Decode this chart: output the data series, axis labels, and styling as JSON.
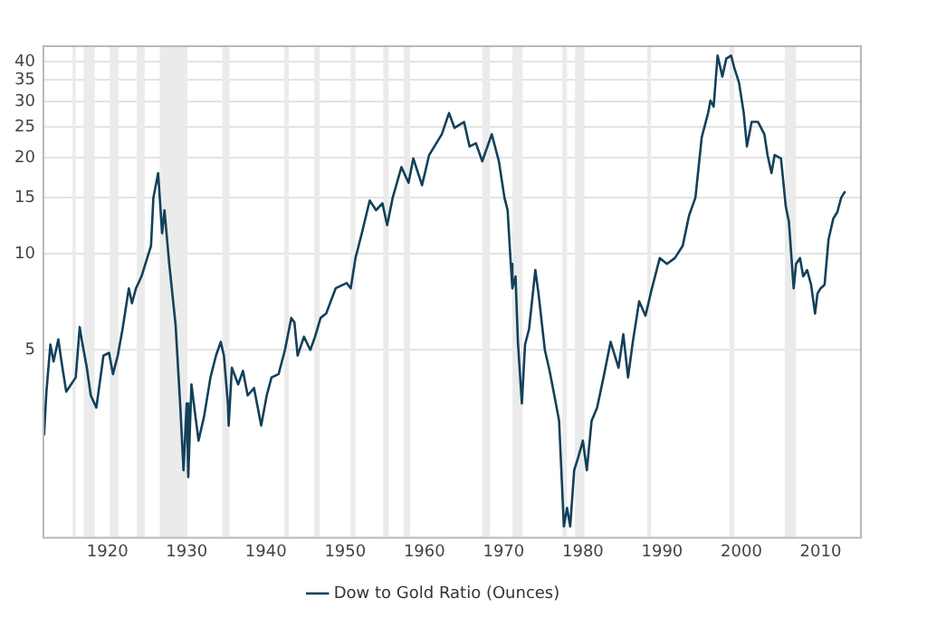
{
  "chart_data": {
    "type": "line",
    "log": true,
    "grid": "y",
    "legend": "bottom",
    "marker": "none",
    "line_style": "solid",
    "xlim": [
      1911.8,
      2015.2
    ],
    "xticks": [
      1920,
      1930,
      1940,
      1950,
      1960,
      1970,
      1980,
      1990,
      2000,
      2010
    ],
    "ylim": [
      1.3,
      45
    ],
    "yticks": [
      5,
      10,
      15,
      20,
      25,
      30,
      35,
      40
    ],
    "bands": [
      {
        "axis": "x",
        "from": 1915.6,
        "to": 1916.0,
        "color": "#ebebeb"
      },
      {
        "axis": "x",
        "from": 1917.0,
        "to": 1918.4,
        "color": "#ebebeb"
      },
      {
        "axis": "x",
        "from": 1920.3,
        "to": 1921.4,
        "color": "#ebebeb"
      },
      {
        "axis": "x",
        "from": 1923.7,
        "to": 1924.7,
        "color": "#ebebeb"
      },
      {
        "axis": "x",
        "from": 1926.6,
        "to": 1930.1,
        "color": "#ebebeb"
      },
      {
        "axis": "x",
        "from": 1934.5,
        "to": 1935.4,
        "color": "#ebebeb"
      },
      {
        "axis": "x",
        "from": 1942.3,
        "to": 1942.9,
        "color": "#ebebeb"
      },
      {
        "axis": "x",
        "from": 1946.1,
        "to": 1946.8,
        "color": "#ebebeb"
      },
      {
        "axis": "x",
        "from": 1950.7,
        "to": 1951.3,
        "color": "#ebebeb"
      },
      {
        "axis": "x",
        "from": 1954.8,
        "to": 1955.5,
        "color": "#ebebeb"
      },
      {
        "axis": "x",
        "from": 1957.4,
        "to": 1958.2,
        "color": "#ebebeb"
      },
      {
        "axis": "x",
        "from": 1967.3,
        "to": 1968.3,
        "color": "#ebebeb"
      },
      {
        "axis": "x",
        "from": 1971.1,
        "to": 1972.4,
        "color": "#ebebeb"
      },
      {
        "axis": "x",
        "from": 1977.4,
        "to": 1978.0,
        "color": "#ebebeb"
      },
      {
        "axis": "x",
        "from": 1979.0,
        "to": 1980.2,
        "color": "#ebebeb"
      },
      {
        "axis": "x",
        "from": 1988.1,
        "to": 1988.6,
        "color": "#ebebeb"
      },
      {
        "axis": "x",
        "from": 1998.5,
        "to": 1999.1,
        "color": "#ebebeb"
      },
      {
        "axis": "x",
        "from": 2005.5,
        "to": 2006.9,
        "color": "#ebebeb"
      }
    ],
    "series": [
      {
        "name": "Dow to Gold Ratio (Ounces)",
        "color": "#13405a",
        "x": [
          1912.0,
          1912.3,
          1912.8,
          1913.2,
          1913.8,
          1914.2,
          1914.8,
          1916.0,
          1916.5,
          1916.8,
          1917.4,
          1917.9,
          1918.6,
          1919.5,
          1920.2,
          1920.7,
          1921.3,
          1921.9,
          1922.7,
          1923.1,
          1923.6,
          1924.3,
          1925.5,
          1925.8,
          1926.4,
          1926.9,
          1927.2,
          1927.8,
          1928.6,
          1929.2,
          1929.6,
          1930.0,
          1930.2,
          1930.6,
          1931.1,
          1931.5,
          1932.2,
          1933.0,
          1933.7,
          1934.3,
          1934.7,
          1935.2,
          1935.3,
          1935.7,
          1936.5,
          1937.1,
          1937.7,
          1938.5,
          1939.4,
          1940.1,
          1940.7,
          1941.6,
          1942.4,
          1943.2,
          1943.6,
          1944.0,
          1944.8,
          1945.6,
          1946.2,
          1946.9,
          1947.6,
          1948.8,
          1950.2,
          1950.7,
          1951.3,
          1952.1,
          1953.1,
          1953.9,
          1954.7,
          1955.3,
          1956.0,
          1957.1,
          1958.0,
          1958.6,
          1959.7,
          1960.6,
          1962.2,
          1963.1,
          1963.8,
          1965.0,
          1965.7,
          1966.5,
          1967.3,
          1968.5,
          1969.4,
          1970.1,
          1970.5,
          1970.9,
          1971.1,
          1971.5,
          1971.8,
          1972.3,
          1972.7,
          1973.2,
          1974.0,
          1974.4,
          1975.2,
          1975.8,
          1976.4,
          1977.0,
          1977.6,
          1978.0,
          1978.4,
          1978.9,
          1979.4,
          1980.0,
          1980.5,
          1981.1,
          1981.8,
          1982.6,
          1983.5,
          1984.5,
          1985.1,
          1985.7,
          1986.3,
          1987.1,
          1987.9,
          1988.6,
          1989.7,
          1990.6,
          1991.6,
          1992.6,
          1993.4,
          1994.2,
          1995.0,
          1995.8,
          1996.1,
          1996.5,
          1997.0,
          1997.6,
          1998.1,
          1998.7,
          1999.1,
          1999.7,
          2000.3,
          2000.7,
          2001.3,
          2002.1,
          2002.9,
          2003.3,
          2003.8,
          2004.2,
          2005.0,
          2005.6,
          2006.0,
          2006.6,
          2006.9,
          2007.4,
          2007.8,
          2008.3,
          2008.8,
          2009.3,
          2009.6,
          2010.0,
          2010.5,
          2011.0,
          2011.6,
          2012.1,
          2012.6,
          2013.1
        ],
        "values": [
          2.7,
          3.7,
          5.2,
          4.6,
          5.4,
          4.6,
          3.7,
          4.1,
          5.9,
          5.3,
          4.4,
          3.6,
          3.3,
          4.8,
          4.9,
          4.2,
          4.8,
          5.8,
          7.8,
          7.0,
          7.8,
          8.5,
          10.6,
          15.0,
          17.9,
          11.6,
          13.7,
          9.3,
          6.0,
          3.3,
          2.1,
          3.4,
          2.0,
          3.9,
          3.1,
          2.6,
          3.1,
          4.1,
          4.8,
          5.3,
          4.8,
          3.4,
          2.9,
          4.4,
          3.9,
          4.3,
          3.6,
          3.8,
          2.9,
          3.6,
          4.1,
          4.2,
          5.0,
          6.3,
          6.1,
          4.8,
          5.5,
          5.0,
          5.5,
          6.3,
          6.5,
          7.8,
          8.1,
          7.8,
          9.7,
          11.6,
          14.7,
          13.7,
          14.4,
          12.3,
          15.0,
          18.7,
          16.7,
          19.9,
          16.4,
          20.4,
          23.7,
          27.6,
          24.8,
          25.9,
          21.7,
          22.2,
          19.5,
          23.7,
          19.5,
          15.0,
          13.7,
          9.3,
          7.8,
          8.5,
          5.3,
          3.4,
          5.2,
          5.8,
          8.9,
          7.5,
          5.0,
          4.3,
          3.6,
          3.0,
          1.4,
          1.6,
          1.4,
          2.1,
          2.3,
          2.6,
          2.1,
          3.0,
          3.3,
          4.1,
          5.3,
          4.4,
          5.6,
          4.1,
          5.3,
          7.1,
          6.4,
          7.6,
          9.7,
          9.3,
          9.7,
          10.6,
          13.2,
          15.0,
          23.2,
          27.6,
          30.2,
          28.9,
          41.8,
          35.9,
          40.9,
          41.8,
          38.3,
          34.4,
          27.6,
          21.7,
          25.9,
          25.9,
          23.7,
          20.4,
          17.9,
          20.4,
          19.9,
          14.1,
          12.6,
          7.8,
          9.3,
          9.7,
          8.5,
          8.9,
          8.0,
          6.5,
          7.5,
          7.8,
          8.0,
          11.1,
          12.9,
          13.5,
          15.0,
          15.7
        ]
      }
    ]
  }
}
